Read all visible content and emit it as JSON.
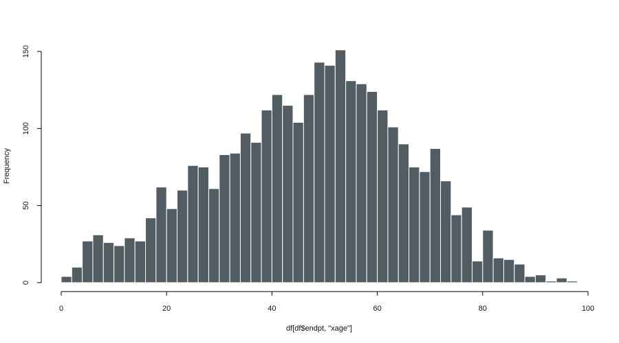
{
  "chart_data": {
    "type": "bar",
    "title": "",
    "xlabel": "df[df$endpt, \"xage\"]",
    "ylabel": "Frequency",
    "bin_edges": [
      0,
      2,
      4,
      6,
      8,
      10,
      12,
      14,
      16,
      18,
      20,
      22,
      24,
      26,
      28,
      30,
      32,
      34,
      36,
      38,
      40,
      42,
      44,
      46,
      48,
      50,
      52,
      54,
      56,
      58,
      60,
      62,
      64,
      66,
      68,
      70,
      72,
      74,
      76,
      78,
      80,
      82,
      84,
      86,
      88,
      90,
      92,
      94,
      96,
      98
    ],
    "values": [
      4,
      10,
      27,
      31,
      26,
      24,
      29,
      27,
      42,
      62,
      48,
      60,
      76,
      75,
      61,
      83,
      84,
      97,
      91,
      112,
      122,
      115,
      104,
      122,
      143,
      141,
      151,
      131,
      129,
      124,
      112,
      101,
      90,
      75,
      72,
      87,
      66,
      44,
      49,
      14,
      34,
      16,
      15,
      12,
      4,
      5,
      1,
      3,
      1
    ],
    "xlim": [
      0,
      100
    ],
    "ylim": [
      0,
      155
    ],
    "x_ticks": [
      0,
      20,
      40,
      60,
      80,
      100
    ],
    "y_ticks": [
      0,
      50,
      100,
      150
    ],
    "bar_color": "#525c63",
    "bar_border": "#ffffff",
    "grid": false,
    "legend": "none"
  }
}
